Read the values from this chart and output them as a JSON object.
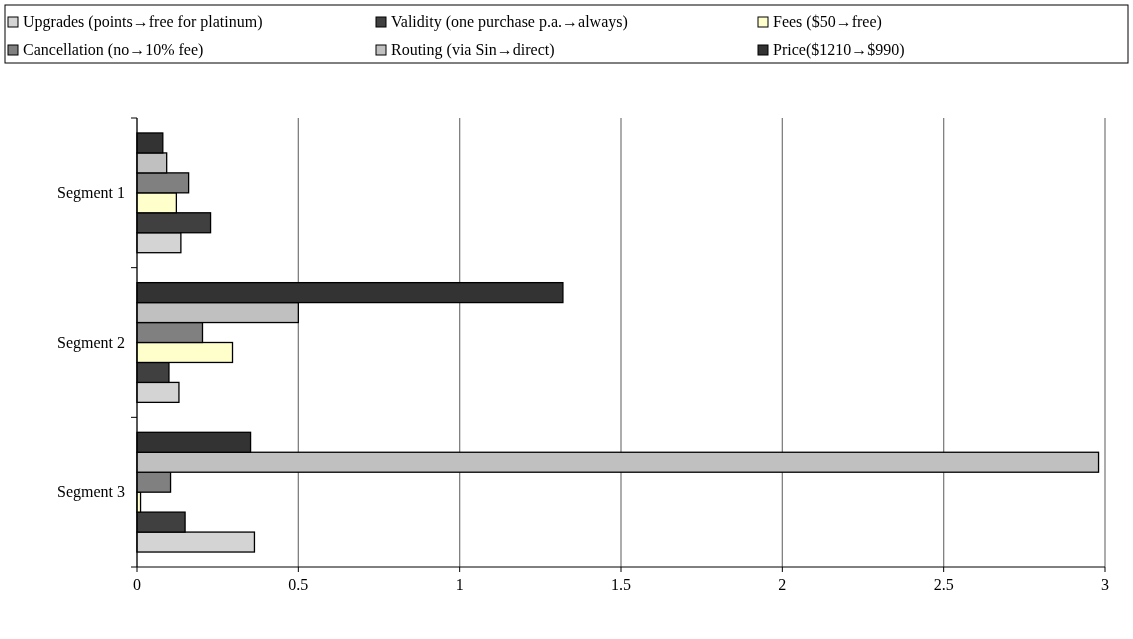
{
  "chart_data": {
    "type": "bar",
    "orientation": "horizontal",
    "categories": [
      "Segment 1",
      "Segment 2",
      "Segment 3"
    ],
    "series": [
      {
        "name": "Upgrades (points→free for platinum)",
        "color": "#d4d4d4",
        "values": [
          0.136,
          0.13,
          0.364
        ]
      },
      {
        "name": "Validity (one purchase p.a.→always)",
        "color": "#404040",
        "values": [
          0.228,
          0.099,
          0.149
        ]
      },
      {
        "name": "Fees ($50→free)",
        "color": "#ffffcc",
        "values": [
          0.122,
          0.296,
          0.011
        ]
      },
      {
        "name": "Cancellation (no→10% fee)",
        "color": "#808080",
        "values": [
          0.16,
          0.203,
          0.104
        ]
      },
      {
        "name": "Routing (via Sin→direct)",
        "color": "#c0c0c0",
        "values": [
          0.092,
          0.5,
          2.98
        ]
      },
      {
        "name": "Price($1210→$990)",
        "color": "#333333",
        "values": [
          0.08,
          1.32,
          0.352
        ]
      }
    ],
    "xlim": [
      0,
      3
    ],
    "xticks": [
      0,
      0.5,
      1,
      1.5,
      2,
      2.5,
      3
    ],
    "grid": "x",
    "legend": "top"
  }
}
